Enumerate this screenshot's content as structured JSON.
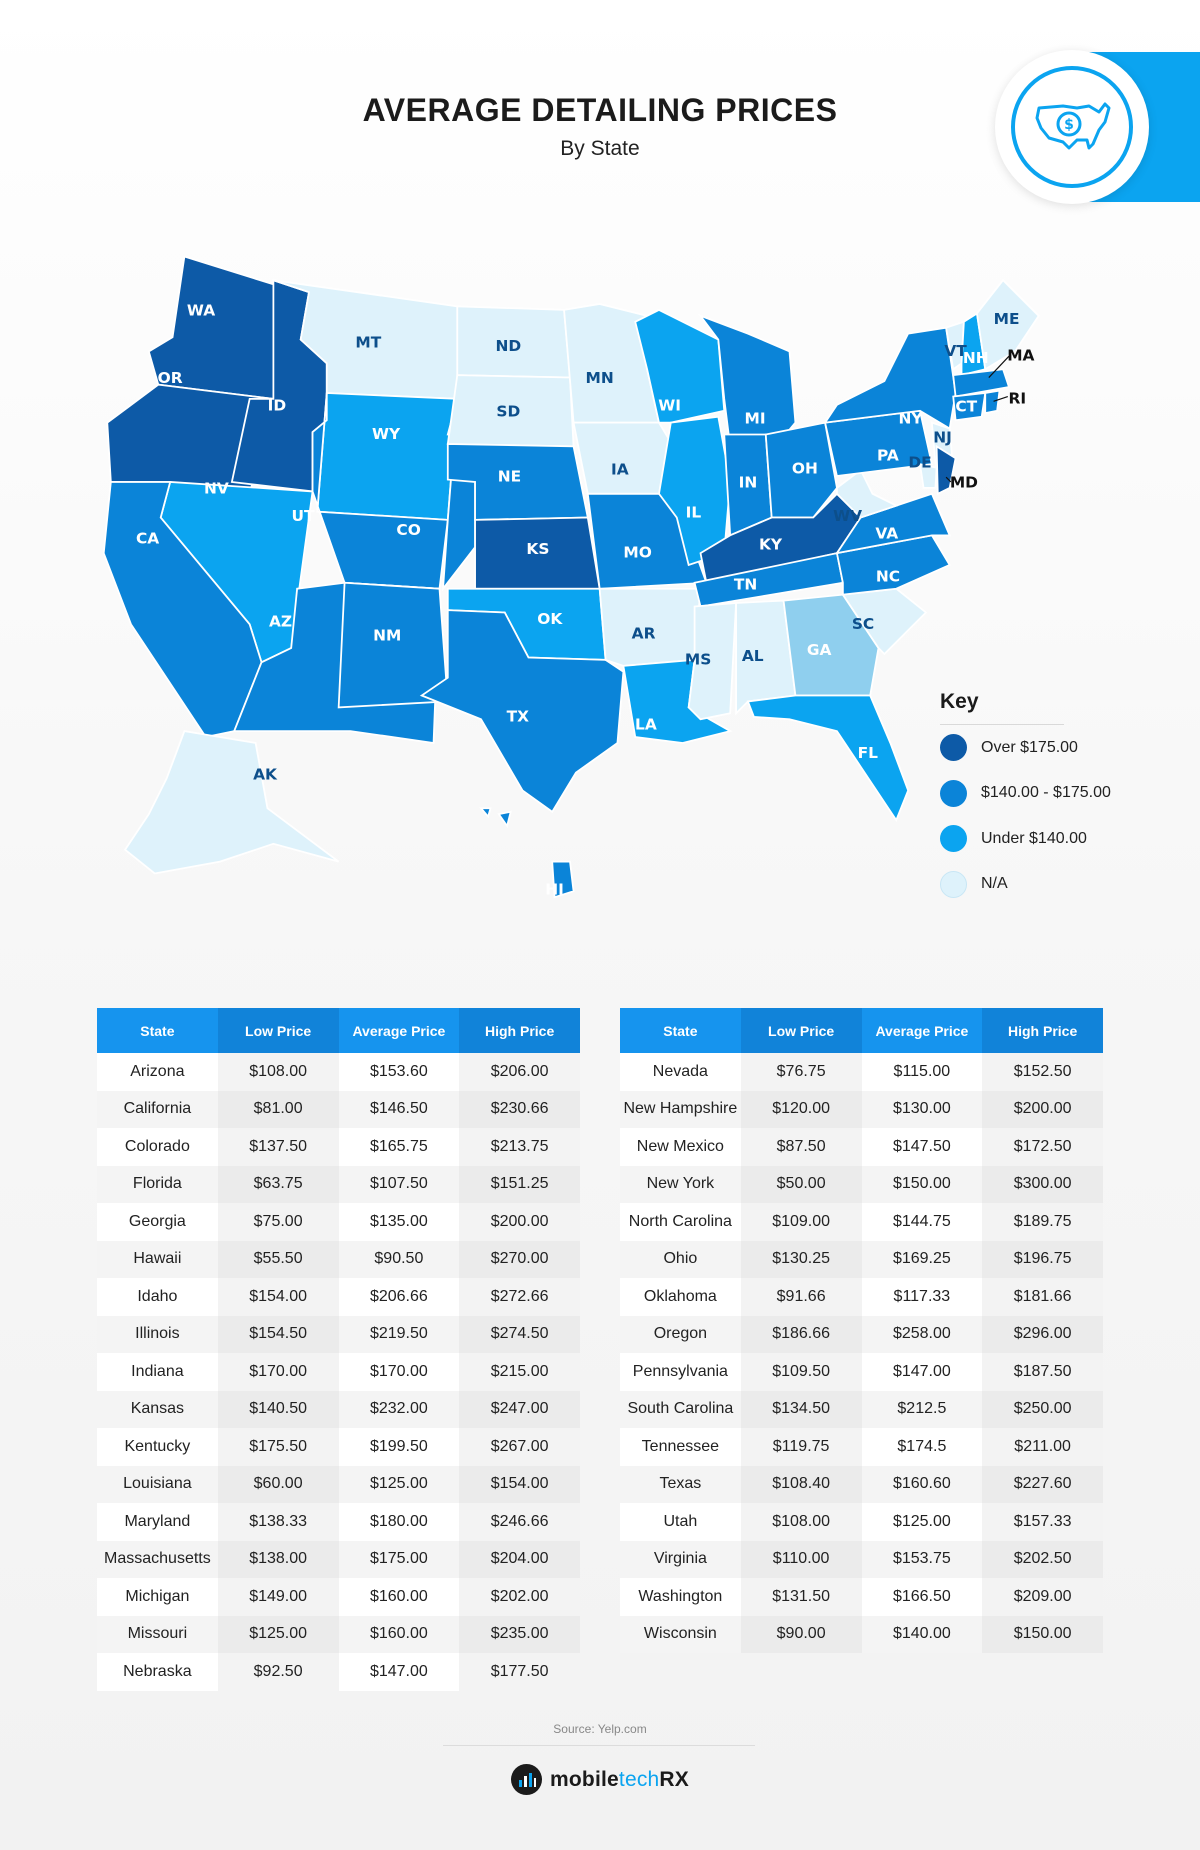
{
  "header": {
    "title": "AVERAGE DETAILING PRICES",
    "subtitle": "By State"
  },
  "badge": {
    "icon": "usa-dollar-icon"
  },
  "colors": {
    "over": "#0d5aa7",
    "mid": "#0b84d8",
    "under": "#0ba4f0",
    "na": "#def2fb",
    "ga": "#8fcfee"
  },
  "map": {
    "labels": {
      "WA": "WA",
      "OR": "OR",
      "ID": "ID",
      "MT": "MT",
      "WY": "WY",
      "NV": "NV",
      "CA": "CA",
      "UT": "UT",
      "CO": "CO",
      "AZ": "AZ",
      "NM": "NM",
      "ND": "ND",
      "SD": "SD",
      "NE": "NE",
      "KS": "KS",
      "OK": "OK",
      "TX": "TX",
      "MN": "MN",
      "IA": "IA",
      "MO": "MO",
      "AR": "AR",
      "LA": "LA",
      "WI": "WI",
      "IL": "IL",
      "MI": "MI",
      "IN": "IN",
      "OH": "OH",
      "KY": "KY",
      "TN": "TN",
      "MS": "MS",
      "AL": "AL",
      "GA": "GA",
      "FL": "FL",
      "SC": "SC",
      "NC": "NC",
      "VA": "VA",
      "WV": "WV",
      "PA": "PA",
      "NY": "NY",
      "VT": "VT",
      "NH": "NH",
      "ME": "ME",
      "MA": "MA",
      "CT": "CT",
      "RI": "RI",
      "NJ": "NJ",
      "DE": "DE",
      "MD": "MD",
      "AK": "AK",
      "HI": "HI"
    }
  },
  "key": {
    "title": "Key",
    "items": [
      {
        "label": "Over $175.00",
        "color": "#0d5aa7"
      },
      {
        "label": "$140.00 - $175.00",
        "color": "#0b84d8"
      },
      {
        "label": "Under $140.00",
        "color": "#0ba4f0"
      },
      {
        "label": "N/A",
        "color": "#def2fb"
      }
    ]
  },
  "tables": {
    "headers": [
      "State",
      "Low Price",
      "Average Price",
      "High Price"
    ],
    "left": [
      [
        "Arizona",
        "$108.00",
        "$153.60",
        "$206.00"
      ],
      [
        "California",
        "$81.00",
        "$146.50",
        "$230.66"
      ],
      [
        "Colorado",
        "$137.50",
        "$165.75",
        "$213.75"
      ],
      [
        "Florida",
        "$63.75",
        "$107.50",
        "$151.25"
      ],
      [
        "Georgia",
        "$75.00",
        "$135.00",
        "$200.00"
      ],
      [
        "Hawaii",
        "$55.50",
        "$90.50",
        "$270.00"
      ],
      [
        "Idaho",
        "$154.00",
        "$206.66",
        "$272.66"
      ],
      [
        "Illinois",
        "$154.50",
        "$219.50",
        "$274.50"
      ],
      [
        "Indiana",
        "$170.00",
        "$170.00",
        "$215.00"
      ],
      [
        "Kansas",
        "$140.50",
        "$232.00",
        "$247.00"
      ],
      [
        "Kentucky",
        "$175.50",
        "$199.50",
        "$267.00"
      ],
      [
        "Louisiana",
        "$60.00",
        "$125.00",
        "$154.00"
      ],
      [
        "Maryland",
        "$138.33",
        "$180.00",
        "$246.66"
      ],
      [
        "Massachusetts",
        "$138.00",
        "$175.00",
        "$204.00"
      ],
      [
        "Michigan",
        "$149.00",
        "$160.00",
        "$202.00"
      ],
      [
        "Missouri",
        "$125.00",
        "$160.00",
        "$235.00"
      ],
      [
        "Nebraska",
        "$92.50",
        "$147.00",
        "$177.50"
      ]
    ],
    "right": [
      [
        "Nevada",
        "$76.75",
        "$115.00",
        "$152.50"
      ],
      [
        "New Hampshire",
        "$120.00",
        "$130.00",
        "$200.00"
      ],
      [
        "New Mexico",
        "$87.50",
        "$147.50",
        "$172.50"
      ],
      [
        "New York",
        "$50.00",
        "$150.00",
        "$300.00"
      ],
      [
        "North Carolina",
        "$109.00",
        "$144.75",
        "$189.75"
      ],
      [
        "Ohio",
        "$130.25",
        "$169.25",
        "$196.75"
      ],
      [
        "Oklahoma",
        "$91.66",
        "$117.33",
        "$181.66"
      ],
      [
        "Oregon",
        "$186.66",
        "$258.00",
        "$296.00"
      ],
      [
        "Pennsylvania",
        "$109.50",
        "$147.00",
        "$187.50"
      ],
      [
        "South Carolina",
        "$134.50",
        "$212.5",
        "$250.00"
      ],
      [
        "Tennessee",
        "$119.75",
        "$174.5",
        "$211.00"
      ],
      [
        "Texas",
        "$108.40",
        "$160.60",
        "$227.60"
      ],
      [
        "Utah",
        "$108.00",
        "$125.00",
        "$157.33"
      ],
      [
        "Virginia",
        "$110.00",
        "$153.75",
        "$202.50"
      ],
      [
        "Washington",
        "$131.50",
        "$166.50",
        "$209.00"
      ],
      [
        "Wisconsin",
        "$90.00",
        "$140.00",
        "$150.00"
      ]
    ]
  },
  "footer": {
    "source": "Source: Yelp.com",
    "brand_a": "mobile",
    "brand_b": "tech",
    "brand_c": "RX"
  }
}
